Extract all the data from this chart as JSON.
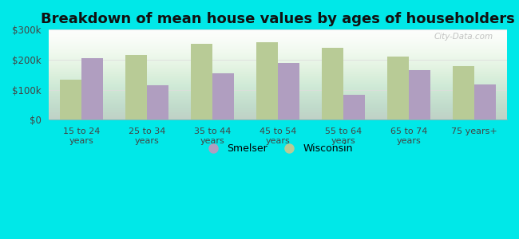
{
  "title": "Breakdown of mean house values by ages of householders",
  "categories": [
    "15 to 24\nyears",
    "25 to 34\nyears",
    "35 to 44\nyears",
    "45 to 54\nyears",
    "55 to 64\nyears",
    "65 to 74\nyears",
    "75 years+"
  ],
  "smelser": [
    205000,
    115000,
    155000,
    190000,
    83000,
    165000,
    118000
  ],
  "wisconsin": [
    133000,
    215000,
    253000,
    258000,
    240000,
    210000,
    178000
  ],
  "smelser_color": "#b09ec0",
  "wisconsin_color": "#b8cb96",
  "background_color": "#00e8e8",
  "plot_bg_top": "#ffffff",
  "plot_bg_bottom": "#d6ecd0",
  "ylim": [
    0,
    300000
  ],
  "yticks": [
    0,
    100000,
    200000,
    300000
  ],
  "ytick_labels": [
    "$0",
    "$100k",
    "$200k",
    "$300k"
  ],
  "title_fontsize": 13,
  "legend_labels": [
    "Smelser",
    "Wisconsin"
  ],
  "watermark": "City-Data.com"
}
